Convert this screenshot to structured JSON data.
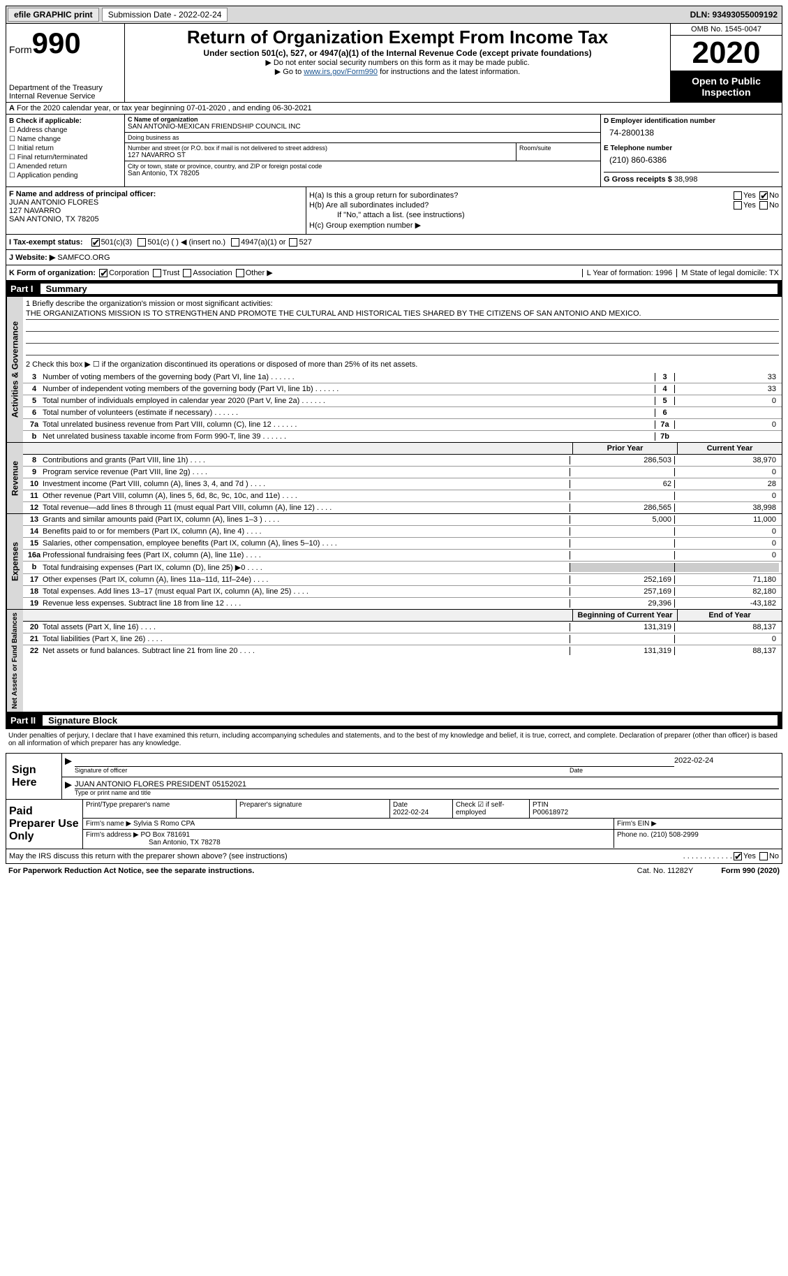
{
  "topbar": {
    "efile": "efile GRAPHIC print",
    "submission": "Submission Date - 2022-02-24",
    "dln": "DLN: 93493055009192"
  },
  "header": {
    "form_label": "Form",
    "form_number": "990",
    "dept": "Department of the Treasury\nInternal Revenue Service",
    "title": "Return of Organization Exempt From Income Tax",
    "subtitle": "Under section 501(c), 527, or 4947(a)(1) of the Internal Revenue Code (except private foundations)",
    "note1": "▶ Do not enter social security numbers on this form as it may be made public.",
    "note2_prefix": "▶ Go to ",
    "note2_link": "www.irs.gov/Form990",
    "note2_suffix": " for instructions and the latest information.",
    "omb": "OMB No. 1545-0047",
    "year": "2020",
    "open": "Open to Public Inspection"
  },
  "rowA": {
    "prefix": "A",
    "text": "For the 2020 calendar year, or tax year beginning 07-01-2020   , and ending 06-30-2021"
  },
  "colB": {
    "label": "B Check if applicable:",
    "items": [
      "Address change",
      "Name change",
      "Initial return",
      "Final return/terminated",
      "Amended return",
      "Application pending"
    ]
  },
  "colC": {
    "name_label": "C Name of organization",
    "name": "SAN ANTONIO-MEXICAN FRIENDSHIP COUNCIL INC",
    "dba_label": "Doing business as",
    "dba": "",
    "addr_label": "Number and street (or P.O. box if mail is not delivered to street address)",
    "room_label": "Room/suite",
    "addr": "127 NAVARRO ST",
    "city_label": "City or town, state or province, country, and ZIP or foreign postal code",
    "city": "San Antonio, TX  78205"
  },
  "colD": {
    "ein_label": "D Employer identification number",
    "ein": "74-2800138",
    "phone_label": "E Telephone number",
    "phone": "(210) 860-6386",
    "gross_label": "G Gross receipts $",
    "gross": "38,998"
  },
  "sectionF": {
    "f_label": "F Name and address of principal officer:",
    "f_name": "JUAN ANTONIO FLORES",
    "f_addr1": "127 NAVARRO",
    "f_addr2": "SAN ANTONIO, TX  78205",
    "ha_label": "H(a)  Is this a group return for subordinates?",
    "hb_label": "H(b)  Are all subordinates included?",
    "hb_note": "If \"No,\" attach a list. (see instructions)",
    "hc_label": "H(c)  Group exemption number ▶",
    "yes": "Yes",
    "no": "No"
  },
  "rowI": {
    "label": "I    Tax-exempt status:",
    "opt1": "501(c)(3)",
    "opt2": "501(c) (  ) ◀ (insert no.)",
    "opt3": "4947(a)(1) or",
    "opt4": "527"
  },
  "rowJ": {
    "label": "J   Website: ▶",
    "value": "SAMFCO.ORG"
  },
  "rowK": {
    "label": "K Form of organization:",
    "opts": [
      "Corporation",
      "Trust",
      "Association",
      "Other ▶"
    ]
  },
  "rowL": {
    "l_label": "L Year of formation: 1996",
    "m_label": "M State of legal domicile: TX"
  },
  "parts": {
    "p1": "Part I",
    "p1_title": "Summary",
    "p2": "Part II",
    "p2_title": "Signature Block"
  },
  "mission": {
    "q1_label": "1  Briefly describe the organization's mission or most significant activities:",
    "q1_text": "THE ORGANIZATIONS MISSION IS TO STRENGTHEN AND PROMOTE THE CULTURAL AND HISTORICAL TIES SHARED BY THE CITIZENS OF SAN ANTONIO AND MEXICO.",
    "q2_label": "2   Check this box ▶ ☐  if the organization discontinued its operations or disposed of more than 25% of its net assets."
  },
  "sideLabels": {
    "gov": "Activities & Governance",
    "rev": "Revenue",
    "exp": "Expenses",
    "net": "Net Assets or Fund Balances"
  },
  "govLines": [
    {
      "n": "3",
      "d": "Number of voting members of the governing body (Part VI, line 1a)",
      "k": "3",
      "v": "33"
    },
    {
      "n": "4",
      "d": "Number of independent voting members of the governing body (Part VI, line 1b)",
      "k": "4",
      "v": "33"
    },
    {
      "n": "5",
      "d": "Total number of individuals employed in calendar year 2020 (Part V, line 2a)",
      "k": "5",
      "v": "0"
    },
    {
      "n": "6",
      "d": "Total number of volunteers (estimate if necessary)",
      "k": "6",
      "v": ""
    },
    {
      "n": "7a",
      "d": "Total unrelated business revenue from Part VIII, column (C), line 12",
      "k": "7a",
      "v": "0"
    },
    {
      "n": "b",
      "d": "Net unrelated business taxable income from Form 990-T, line 39",
      "k": "7b",
      "v": ""
    }
  ],
  "twoColHeader": {
    "c1": "Prior Year",
    "c2": "Current Year"
  },
  "revLines": [
    {
      "n": "8",
      "d": "Contributions and grants (Part VIII, line 1h)",
      "c1": "286,503",
      "c2": "38,970"
    },
    {
      "n": "9",
      "d": "Program service revenue (Part VIII, line 2g)",
      "c1": "",
      "c2": "0"
    },
    {
      "n": "10",
      "d": "Investment income (Part VIII, column (A), lines 3, 4, and 7d )",
      "c1": "62",
      "c2": "28"
    },
    {
      "n": "11",
      "d": "Other revenue (Part VIII, column (A), lines 5, 6d, 8c, 9c, 10c, and 11e)",
      "c1": "",
      "c2": "0"
    },
    {
      "n": "12",
      "d": "Total revenue—add lines 8 through 11 (must equal Part VIII, column (A), line 12)",
      "c1": "286,565",
      "c2": "38,998"
    }
  ],
  "expLines": [
    {
      "n": "13",
      "d": "Grants and similar amounts paid (Part IX, column (A), lines 1–3 )",
      "c1": "5,000",
      "c2": "11,000"
    },
    {
      "n": "14",
      "d": "Benefits paid to or for members (Part IX, column (A), line 4)",
      "c1": "",
      "c2": "0"
    },
    {
      "n": "15",
      "d": "Salaries, other compensation, employee benefits (Part IX, column (A), lines 5–10)",
      "c1": "",
      "c2": "0"
    },
    {
      "n": "16a",
      "d": "Professional fundraising fees (Part IX, column (A), line 11e)",
      "c1": "",
      "c2": "0"
    },
    {
      "n": "b",
      "d": "Total fundraising expenses (Part IX, column (D), line 25) ▶0",
      "c1": "",
      "c2": "",
      "shaded": true
    },
    {
      "n": "17",
      "d": "Other expenses (Part IX, column (A), lines 11a–11d, 11f–24e)",
      "c1": "252,169",
      "c2": "71,180"
    },
    {
      "n": "18",
      "d": "Total expenses. Add lines 13–17 (must equal Part IX, column (A), line 25)",
      "c1": "257,169",
      "c2": "82,180"
    },
    {
      "n": "19",
      "d": "Revenue less expenses. Subtract line 18 from line 12",
      "c1": "29,396",
      "c2": "-43,182"
    }
  ],
  "netHeader": {
    "c1": "Beginning of Current Year",
    "c2": "End of Year"
  },
  "netLines": [
    {
      "n": "20",
      "d": "Total assets (Part X, line 16)",
      "c1": "131,319",
      "c2": "88,137"
    },
    {
      "n": "21",
      "d": "Total liabilities (Part X, line 26)",
      "c1": "",
      "c2": "0"
    },
    {
      "n": "22",
      "d": "Net assets or fund balances. Subtract line 21 from line 20",
      "c1": "131,319",
      "c2": "88,137"
    }
  ],
  "penalty": "Under penalties of perjury, I declare that I have examined this return, including accompanying schedules and statements, and to the best of my knowledge and belief, it is true, correct, and complete. Declaration of preparer (other than officer) is based on all information of which preparer has any knowledge.",
  "sign": {
    "label": "Sign Here",
    "sig_label": "Signature of officer",
    "date_label": "Date",
    "date": "2022-02-24",
    "name": "JUAN ANTONIO FLORES PRESIDENT 05152021",
    "name_label": "Type or print name and title"
  },
  "prep": {
    "label": "Paid Preparer Use Only",
    "h1": "Print/Type preparer's name",
    "h2": "Preparer's signature",
    "h3": "Date",
    "h3v": "2022-02-24",
    "h4": "Check ☑ if self-employed",
    "h5": "PTIN",
    "h5v": "P00618972",
    "firm_label": "Firm's name    ▶",
    "firm": "Sylvia S Romo CPA",
    "ein_label": "Firm's EIN ▶",
    "addr_label": "Firm's address ▶",
    "addr": "PO Box 781691",
    "addr2": "San Antonio, TX  78278",
    "phone_label": "Phone no.",
    "phone": "(210) 508-2999"
  },
  "footer": {
    "discuss": "May the IRS discuss this return with the preparer shown above? (see instructions)",
    "yes": "Yes",
    "no": "No",
    "paperwork": "For Paperwork Reduction Act Notice, see the separate instructions.",
    "cat": "Cat. No. 11282Y",
    "form": "Form 990 (2020)"
  }
}
